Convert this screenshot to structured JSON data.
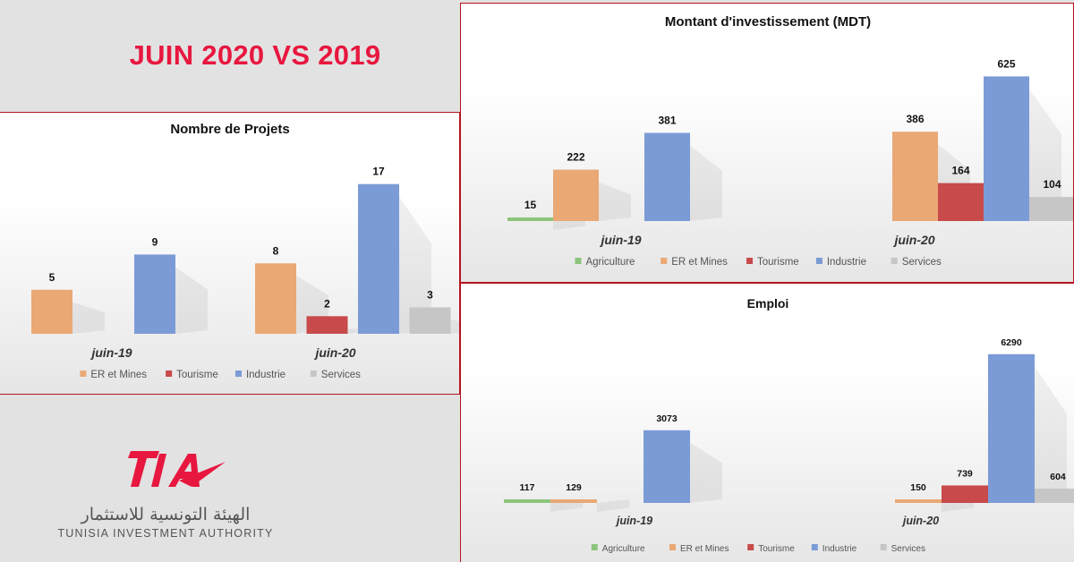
{
  "header": {
    "title": "JUIN 2020 VS 2019"
  },
  "logo": {
    "mark": "TIA",
    "arabic": "الهيئة التونسية للاستثمار",
    "name": "TUNISIA INVESTMENT AUTHORITY",
    "accent": "#e8173f"
  },
  "colors": {
    "Agriculture": "#8cc47c",
    "ER et Mines": "#eaa874",
    "Tourisme": "#c84a4a",
    "Industrie": "#7b9bd6",
    "Services": "#c6c6c6"
  },
  "chart_data": [
    {
      "type": "bar",
      "title": "Nombre de Projets",
      "categories": [
        "juin-19",
        "juin-20"
      ],
      "legend_position": "bottom",
      "series": [
        {
          "name": "ER et Mines",
          "values": [
            5,
            8
          ]
        },
        {
          "name": "Tourisme",
          "values": [
            null,
            2
          ]
        },
        {
          "name": "Industrie",
          "values": [
            9,
            17
          ]
        },
        {
          "name": "Services",
          "values": [
            null,
            3
          ]
        }
      ],
      "ylim": [
        0,
        19
      ]
    },
    {
      "type": "bar",
      "title": "Montant d'investissement (MDT)",
      "categories": [
        "juin-19",
        "juin-20"
      ],
      "legend_position": "bottom",
      "series": [
        {
          "name": "Agriculture",
          "values": [
            15,
            null
          ]
        },
        {
          "name": "ER et Mines",
          "values": [
            222,
            386
          ]
        },
        {
          "name": "Tourisme",
          "values": [
            null,
            164
          ]
        },
        {
          "name": "Industrie",
          "values": [
            381,
            625
          ]
        },
        {
          "name": "Services",
          "values": [
            null,
            104
          ]
        }
      ],
      "ylim": [
        0,
        700
      ]
    },
    {
      "type": "bar",
      "title": "Emploi",
      "categories": [
        "juin-19",
        "juin-20"
      ],
      "legend_position": "bottom",
      "series": [
        {
          "name": "Agriculture",
          "values": [
            117,
            null
          ]
        },
        {
          "name": "ER et Mines",
          "values": [
            129,
            150
          ]
        },
        {
          "name": "Tourisme",
          "values": [
            null,
            739
          ]
        },
        {
          "name": "Industrie",
          "values": [
            3073,
            6290
          ]
        },
        {
          "name": "Services",
          "values": [
            null,
            604
          ]
        }
      ],
      "ylim": [
        0,
        7000
      ]
    }
  ]
}
